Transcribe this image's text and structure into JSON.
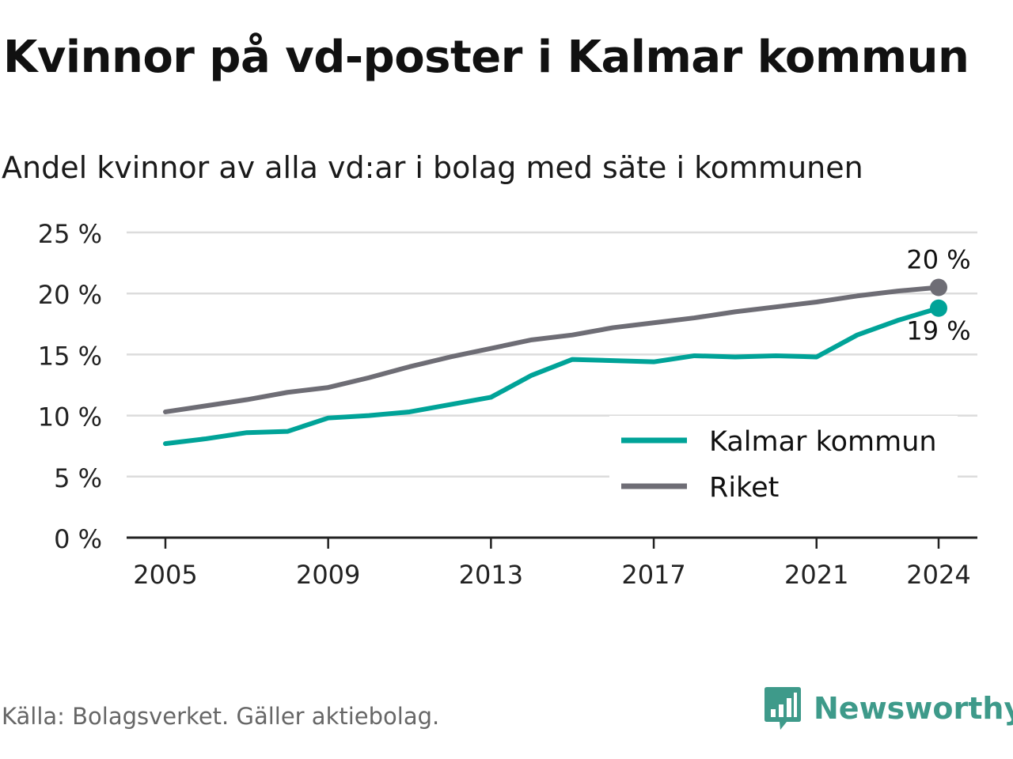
{
  "header": {
    "title": "Kvinnor på vd-poster i Kalmar kommun",
    "subtitle": "Andel kvinnor av alla vd:ar i bolag med säte i kommunen"
  },
  "footer": {
    "source": "Källa: Bolagsverket. Gäller aktiebolag.",
    "brand": "Newsworthy",
    "brand_icon": "bar-chart-bubble-icon"
  },
  "colors": {
    "kalmar": "#00a398",
    "riket": "#6e6d75",
    "grid": "#dcdcdc",
    "axis": "#222222",
    "brand": "#3e9a8a"
  },
  "chart_data": {
    "type": "line",
    "x": [
      2005,
      2006,
      2007,
      2008,
      2009,
      2010,
      2011,
      2012,
      2013,
      2014,
      2015,
      2016,
      2017,
      2018,
      2019,
      2020,
      2021,
      2022,
      2023,
      2024
    ],
    "x_ticks": [
      2005,
      2009,
      2013,
      2017,
      2021,
      2024
    ],
    "x_tick_labels": [
      "2005",
      "2009",
      "2013",
      "2017",
      "2021",
      "2024"
    ],
    "ylim": [
      0,
      25
    ],
    "y_ticks": [
      0,
      5,
      10,
      15,
      20,
      25
    ],
    "y_tick_labels": [
      "0 %",
      "5 %",
      "10 %",
      "15 %",
      "20 %",
      "25 %"
    ],
    "grid": true,
    "legend_position": "bottom-right",
    "series": [
      {
        "name": "Kalmar kommun",
        "color_key": "kalmar",
        "values": [
          7.7,
          8.1,
          8.6,
          8.7,
          9.8,
          10.0,
          10.3,
          10.9,
          11.5,
          13.3,
          14.6,
          14.5,
          14.4,
          14.9,
          14.8,
          14.9,
          14.8,
          16.6,
          17.8,
          18.8
        ],
        "end_label": "19 %"
      },
      {
        "name": "Riket",
        "color_key": "riket",
        "values": [
          10.3,
          10.8,
          11.3,
          11.9,
          12.3,
          13.1,
          14.0,
          14.8,
          15.5,
          16.2,
          16.6,
          17.2,
          17.6,
          18.0,
          18.5,
          18.9,
          19.3,
          19.8,
          20.2,
          20.5
        ],
        "end_label": "20 %"
      }
    ]
  }
}
